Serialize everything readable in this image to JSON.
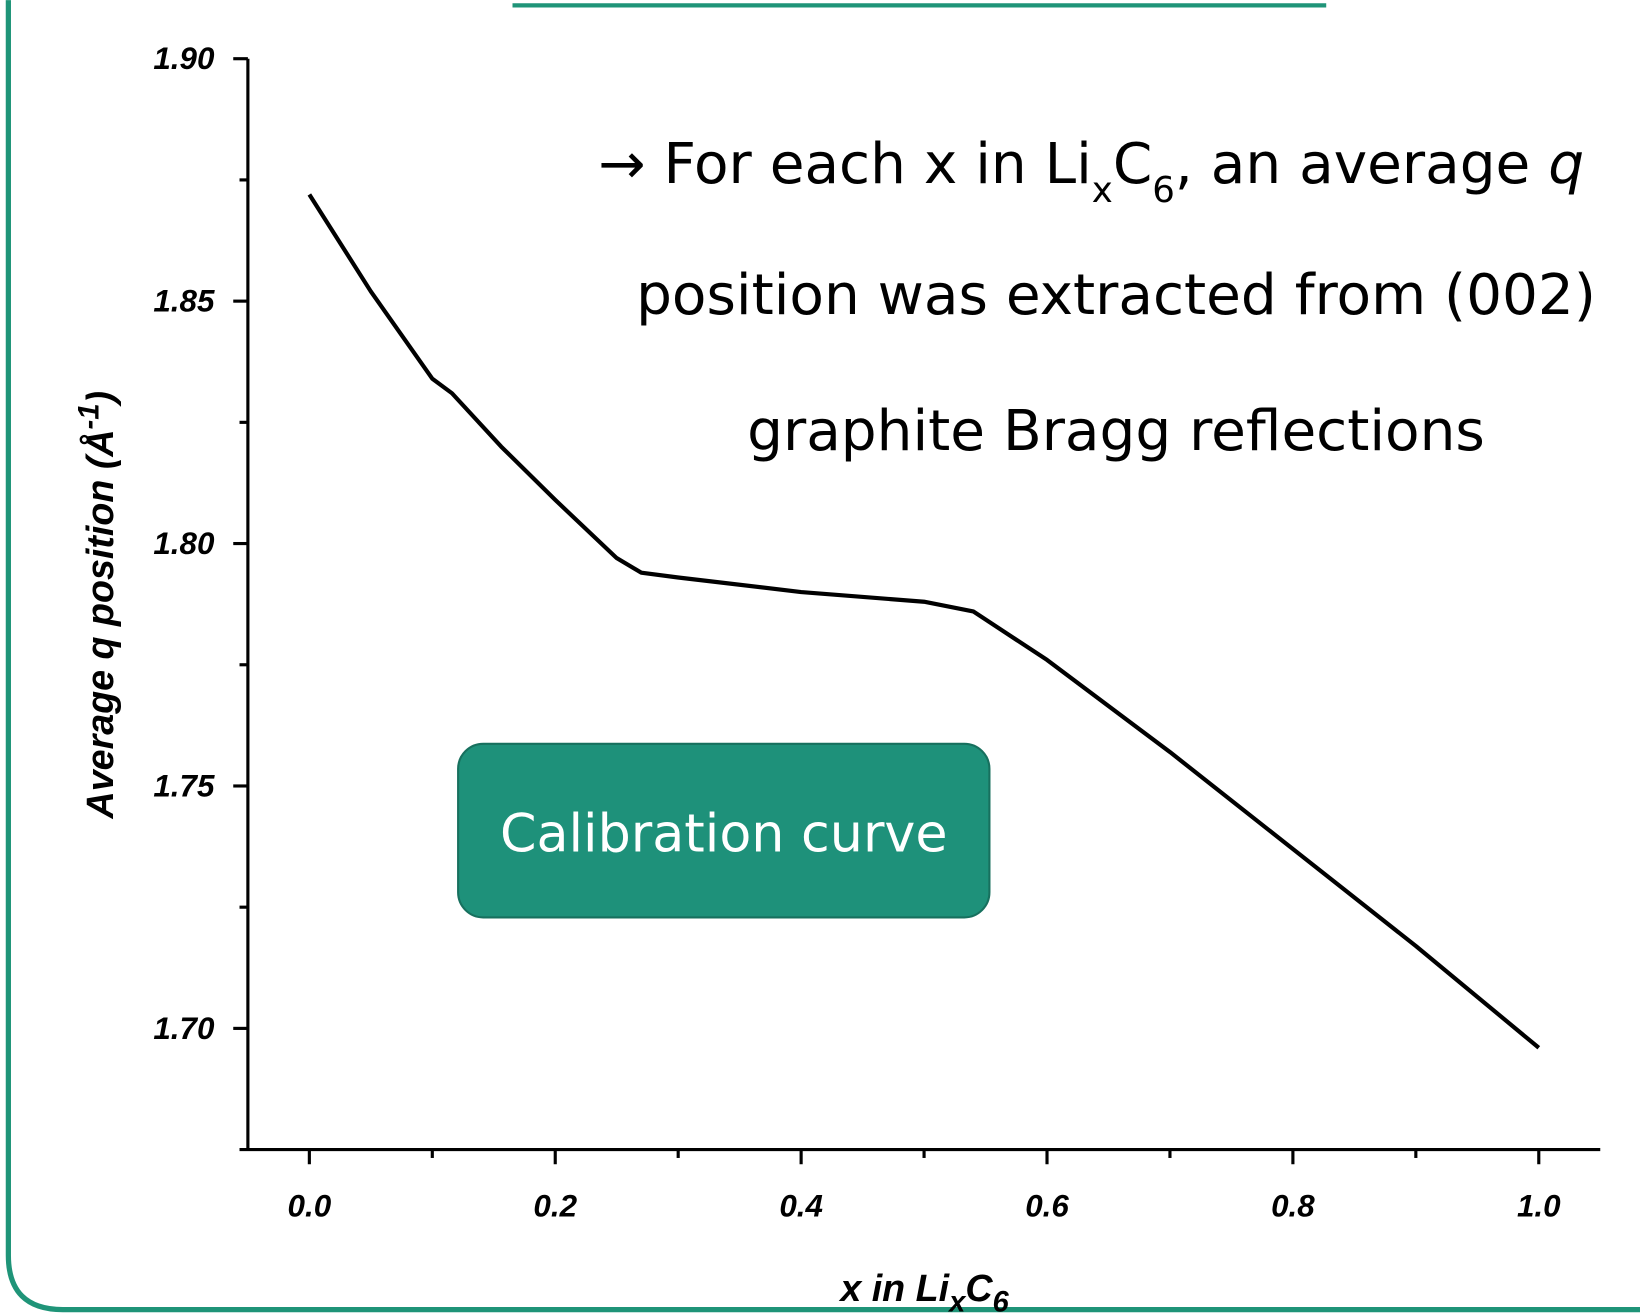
{
  "chart_data": {
    "type": "line",
    "x_label_parts": [
      "x in Li",
      "x",
      "C",
      "6"
    ],
    "y_label_parts": [
      "Average q position (Å",
      "-1",
      ")"
    ],
    "annotation_parts": [
      "→ For each x in Li",
      "x",
      "C",
      "6",
      ", an average ",
      "q",
      "position was extracted from (002)",
      "graphite Bragg reflections"
    ],
    "box_label": "Calibration curve",
    "x": [
      0,
      0.05,
      0.1,
      0.116,
      0.156,
      0.2,
      0.25,
      0.27,
      0.3,
      0.4,
      0.5,
      0.54,
      0.6,
      0.7,
      0.8,
      0.9,
      1.0
    ],
    "series": [
      {
        "color": "#000000",
        "values": [
          1.872,
          1.852,
          1.834,
          1.831,
          1.82,
          1.809,
          1.797,
          1.794,
          1.793,
          1.79,
          1.788,
          1.786,
          1.776,
          1.757,
          1.737,
          1.717,
          1.696
        ]
      }
    ],
    "xlim": [
      -0.05,
      1.05
    ],
    "ylim": [
      1.675,
      1.9
    ],
    "xticks": [
      {
        "value": 0,
        "label": "0.0"
      },
      0.2,
      0.4,
      0.6,
      0.8,
      {
        "value": 1,
        "label": "1.0"
      }
    ],
    "yticks": [
      {
        "value": 1.7,
        "label": "1.70"
      },
      1.75,
      {
        "value": 1.8,
        "label": "1.80"
      },
      1.85,
      {
        "value": 1.9,
        "label": "1.90"
      }
    ],
    "xminorticks": [
      0.1,
      0.3,
      0.5,
      0.7,
      0.9
    ],
    "yminorticks": [
      1.725,
      1.775,
      1.825,
      1.875
    ]
  }
}
